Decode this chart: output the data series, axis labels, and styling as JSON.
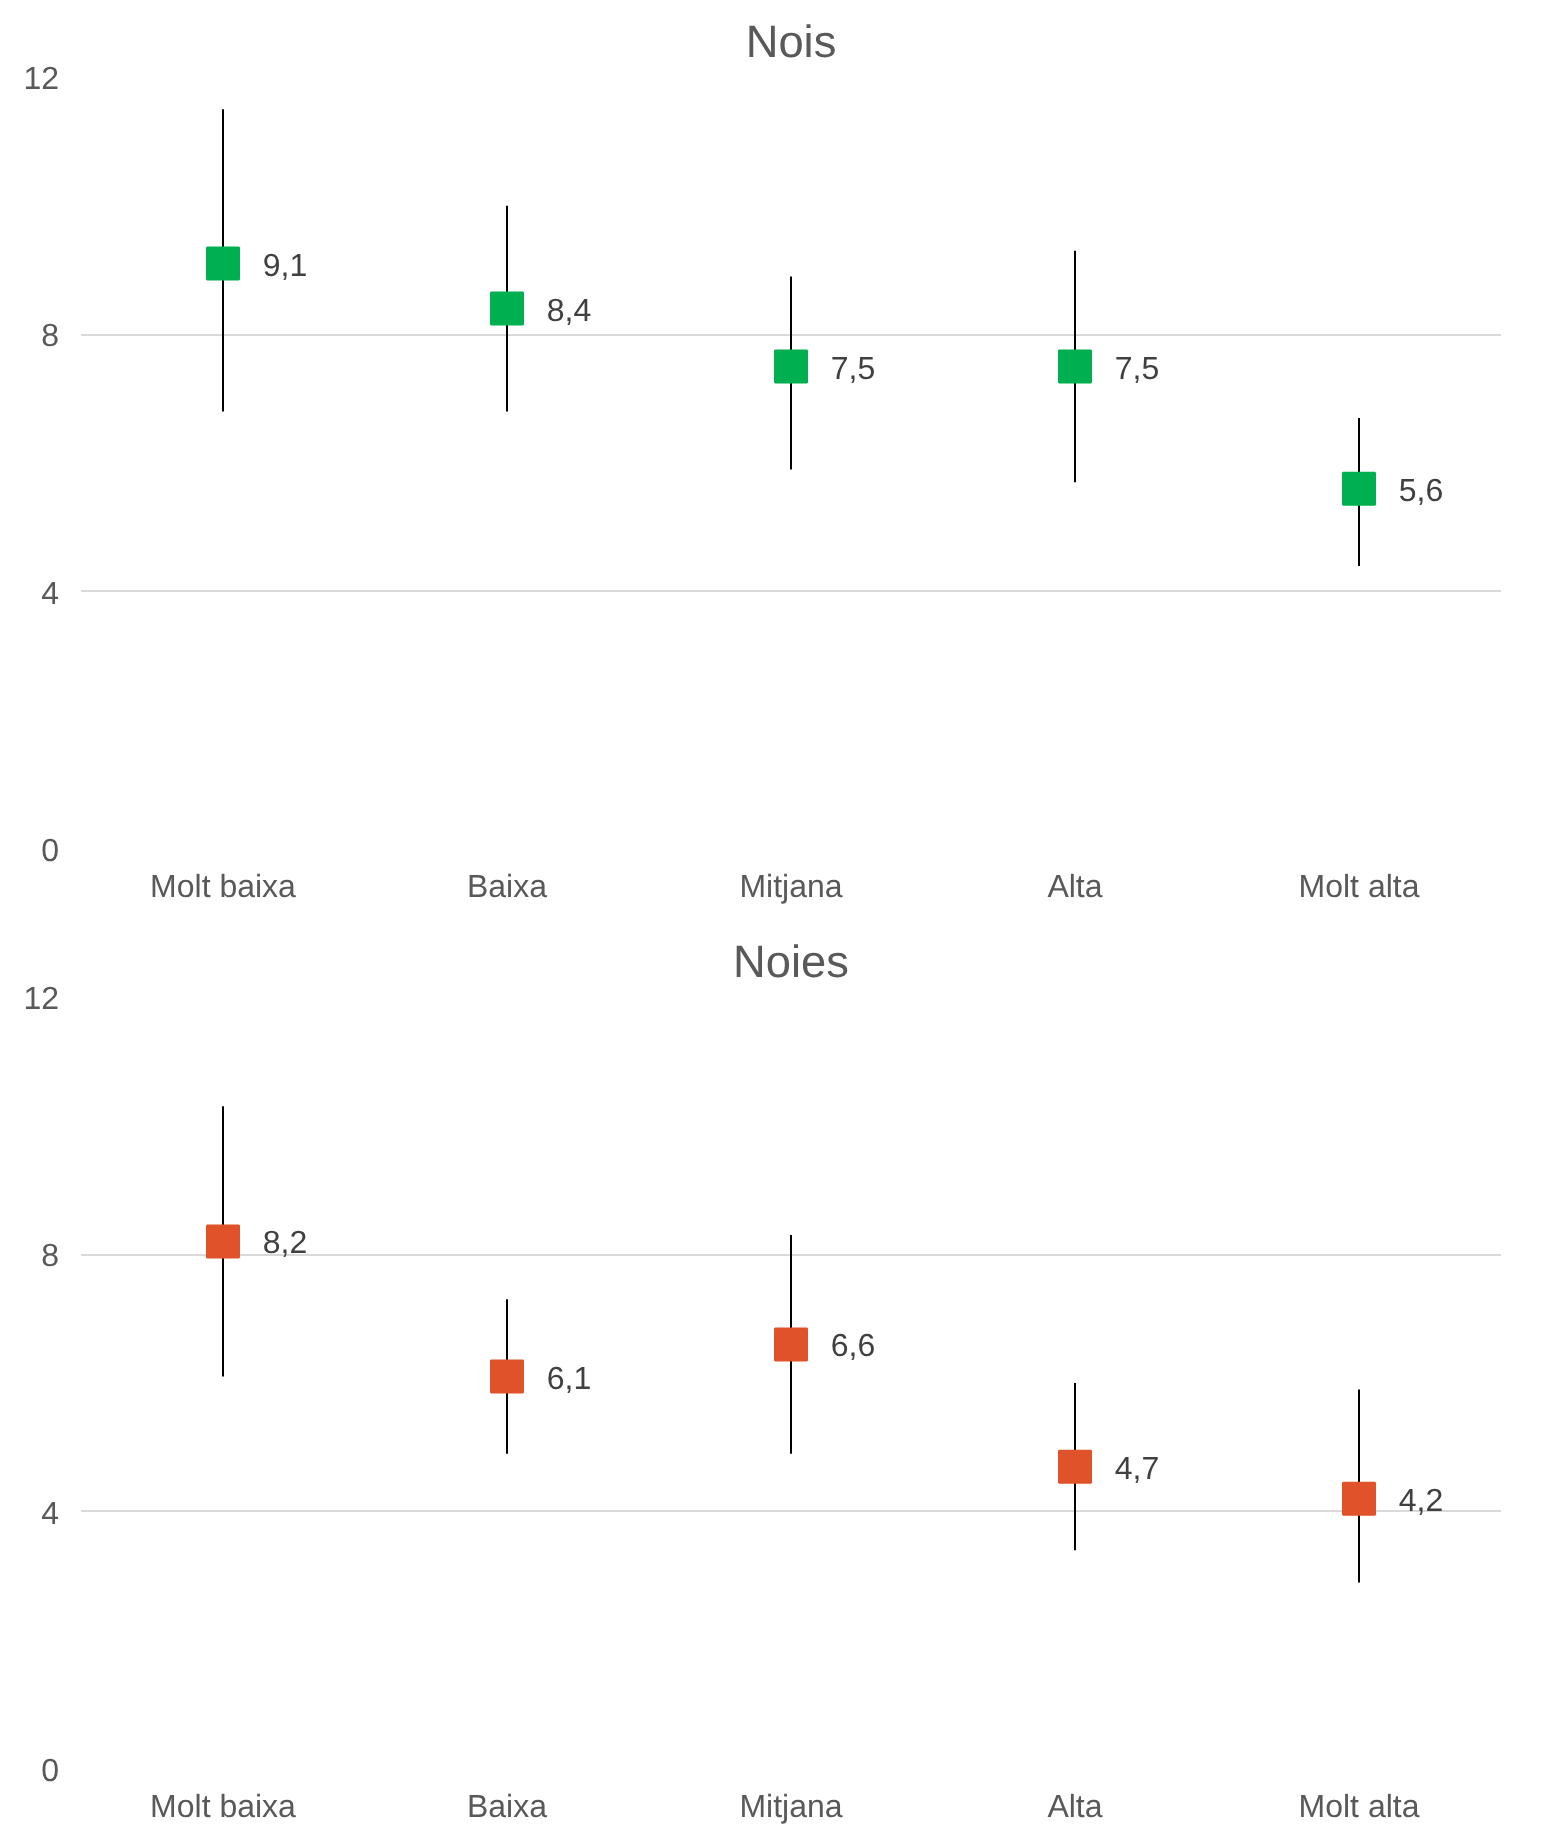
{
  "chart_data": [
    {
      "type": "scatter",
      "title": "Nois",
      "categories": [
        "Molt baixa",
        "Baixa",
        "Mitjana",
        "Alta",
        "Molt alta"
      ],
      "series": [
        {
          "color": "#00b050",
          "values": [
            9.1,
            8.4,
            7.5,
            7.5,
            5.6
          ],
          "value_labels": [
            "9,1",
            "8,4",
            "7,5",
            "7,5",
            "5,6"
          ],
          "errors": [
            [
              6.8,
              11.5
            ],
            [
              6.8,
              10.0
            ],
            [
              5.9,
              8.9
            ],
            [
              5.7,
              9.3
            ],
            [
              4.4,
              6.7
            ]
          ]
        }
      ],
      "ylim": [
        0,
        12
      ],
      "yticks": [
        0,
        4,
        8,
        12
      ],
      "grid": "y",
      "marker": "square"
    },
    {
      "type": "scatter",
      "title": "Noies",
      "categories": [
        "Molt baixa",
        "Baixa",
        "Mitjana",
        "Alta",
        "Molt alta"
      ],
      "series": [
        {
          "color": "#e0532a",
          "values": [
            8.2,
            6.1,
            6.6,
            4.7,
            4.2
          ],
          "value_labels": [
            "8,2",
            "6,1",
            "6,6",
            "4,7",
            "4,2"
          ],
          "errors": [
            [
              6.1,
              10.3
            ],
            [
              4.9,
              7.3
            ],
            [
              4.9,
              8.3
            ],
            [
              3.4,
              6.0
            ],
            [
              2.9,
              5.9
            ]
          ]
        }
      ],
      "ylim": [
        0,
        12
      ],
      "yticks": [
        0,
        4,
        8,
        12
      ],
      "grid": "y",
      "marker": "square"
    }
  ]
}
